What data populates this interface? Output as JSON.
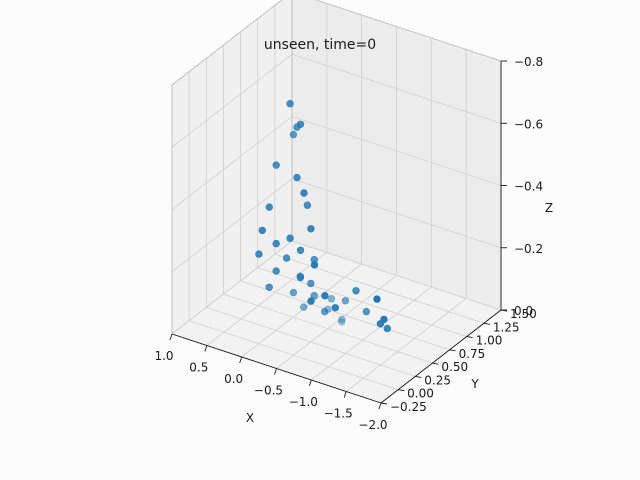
{
  "chart_data": {
    "type": "scatter",
    "projection": "3d",
    "title": "unseen, time=0",
    "xlabel": "X",
    "ylabel": "Y",
    "zlabel": "Z",
    "xlim": [
      -2.0,
      1.0
    ],
    "ylim": [
      -0.25,
      1.5
    ],
    "zlim": [
      0.0,
      -0.8
    ],
    "x_ticks": [
      1.0,
      0.5,
      0.0,
      -0.5,
      -1.0,
      -1.5,
      -2.0
    ],
    "x_tick_labels": [
      "1.0",
      "0.5",
      "0.0",
      "−0.5",
      "−1.0",
      "−1.5",
      "−2.0"
    ],
    "y_ticks": [
      -0.25,
      0.0,
      0.25,
      0.5,
      0.75,
      1.0,
      1.25,
      1.5
    ],
    "y_tick_labels": [
      "−0.25",
      "0.00",
      "0.25",
      "0.50",
      "0.75",
      "1.00",
      "1.25",
      "1.50"
    ],
    "z_ticks": [
      0.0,
      -0.2,
      -0.4,
      -0.6,
      -0.8
    ],
    "z_tick_labels": [
      "0.0",
      "−0.2",
      "−0.4",
      "−0.6",
      "−0.8"
    ],
    "grid": true,
    "marker_color": "#1f77b4",
    "points": [
      {
        "x": -0.35,
        "y": 0.1,
        "z": -0.78
      },
      {
        "x": -0.4,
        "y": 0.15,
        "z": -0.7
      },
      {
        "x": -0.48,
        "y": 0.12,
        "z": -0.72
      },
      {
        "x": -0.3,
        "y": 0.2,
        "z": -0.66
      },
      {
        "x": -0.2,
        "y": 0.05,
        "z": -0.58
      },
      {
        "x": -0.45,
        "y": 0.1,
        "z": -0.55
      },
      {
        "x": -0.6,
        "y": 0.05,
        "z": -0.52
      },
      {
        "x": -0.15,
        "y": 0.0,
        "z": -0.45
      },
      {
        "x": -0.55,
        "y": 0.15,
        "z": -0.46
      },
      {
        "x": -0.65,
        "y": 0.1,
        "z": -0.4
      },
      {
        "x": -0.1,
        "y": -0.05,
        "z": -0.38
      },
      {
        "x": -0.4,
        "y": 0.05,
        "z": -0.36
      },
      {
        "x": -0.25,
        "y": 0.0,
        "z": -0.34
      },
      {
        "x": -0.5,
        "y": 0.1,
        "z": -0.32
      },
      {
        "x": -0.75,
        "y": 0.05,
        "z": -0.3
      },
      {
        "x": -0.05,
        "y": -0.05,
        "z": -0.3
      },
      {
        "x": -0.3,
        "y": 0.1,
        "z": -0.28
      },
      {
        "x": -0.6,
        "y": 0.2,
        "z": -0.28
      },
      {
        "x": -0.2,
        "y": 0.05,
        "z": -0.24
      },
      {
        "x": -0.45,
        "y": 0.15,
        "z": -0.22
      },
      {
        "x": -0.85,
        "y": 0.1,
        "z": -0.2
      },
      {
        "x": -0.55,
        "y": 0.2,
        "z": -0.2
      },
      {
        "x": -0.35,
        "y": 0.25,
        "z": -0.2
      },
      {
        "x": -0.7,
        "y": 0.05,
        "z": -0.18
      },
      {
        "x": -0.1,
        "y": 0.05,
        "z": -0.18
      },
      {
        "x": -0.95,
        "y": 0.15,
        "z": -0.16
      },
      {
        "x": -0.25,
        "y": 0.25,
        "z": -0.14
      },
      {
        "x": -0.5,
        "y": 0.3,
        "z": -0.14
      },
      {
        "x": -0.65,
        "y": 0.3,
        "z": -0.1
      },
      {
        "x": -0.3,
        "y": 0.35,
        "z": -0.08
      },
      {
        "x": -1.5,
        "y": 0.2,
        "z": -0.22
      },
      {
        "x": -1.55,
        "y": 0.25,
        "z": -0.15
      },
      {
        "x": -1.45,
        "y": 0.3,
        "z": -0.12
      },
      {
        "x": -1.5,
        "y": 0.35,
        "z": -0.1
      },
      {
        "x": -1.15,
        "y": 0.4,
        "z": -0.12
      },
      {
        "x": -1.1,
        "y": 0.3,
        "z": -0.2
      },
      {
        "x": -0.8,
        "y": 0.45,
        "z": -0.12
      },
      {
        "x": -0.55,
        "y": 0.5,
        "z": -0.1
      },
      {
        "x": -0.45,
        "y": 0.55,
        "z": -0.05
      },
      {
        "x": -0.6,
        "y": 0.6,
        "z": -0.02
      },
      {
        "x": -0.55,
        "y": 0.65,
        "z": 0.0
      }
    ]
  }
}
